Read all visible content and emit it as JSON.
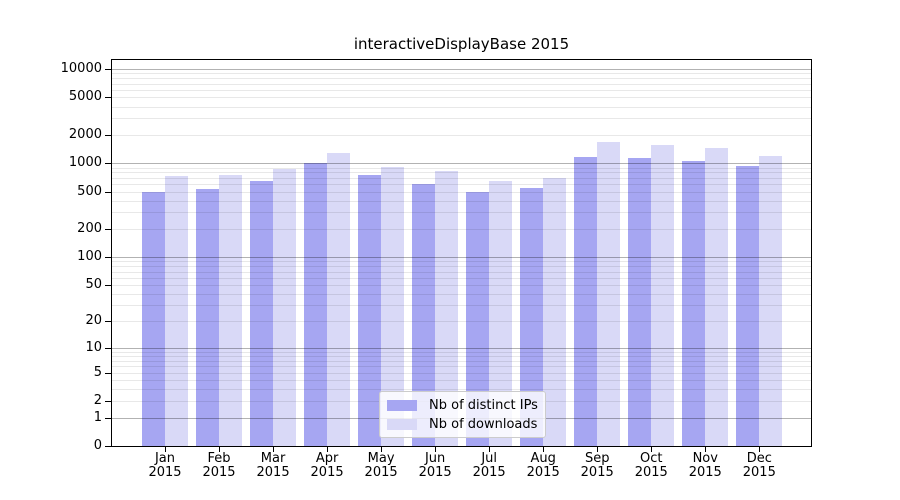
{
  "chart_data": {
    "type": "bar",
    "title": "interactiveDisplayBase 2015",
    "x_axis": {
      "months": [
        "Jan",
        "Feb",
        "Mar",
        "Apr",
        "May",
        "Jun",
        "Jul",
        "Aug",
        "Sep",
        "Oct",
        "Nov",
        "Dec"
      ],
      "year": "2015"
    },
    "y_axis": {
      "scale": "log1p",
      "ticks": [
        10000,
        5000,
        2000,
        1000,
        500,
        200,
        100,
        50,
        20,
        10,
        5,
        2,
        1,
        0
      ],
      "ylim": [
        0,
        12500
      ]
    },
    "series": [
      {
        "name": "Nb of distinct IPs",
        "color": "#a6a6f2",
        "values": [
          490,
          530,
          650,
          1000,
          750,
          600,
          500,
          550,
          1180,
          1140,
          1070,
          940
        ]
      },
      {
        "name": "Nb of downloads",
        "color": "#d9d9f7",
        "values": [
          740,
          750,
          860,
          1300,
          910,
          830,
          650,
          700,
          1680,
          1580,
          1450,
          1200
        ]
      }
    ],
    "grid": true,
    "legend_position": "inside-lower-center"
  },
  "colors": {
    "major_grid": "rgba(0,0,0,0.30)",
    "minor_grid": "rgba(0,0,0,0.09)",
    "spine": "#000000",
    "background": "#ffffff",
    "text": "#000000"
  }
}
